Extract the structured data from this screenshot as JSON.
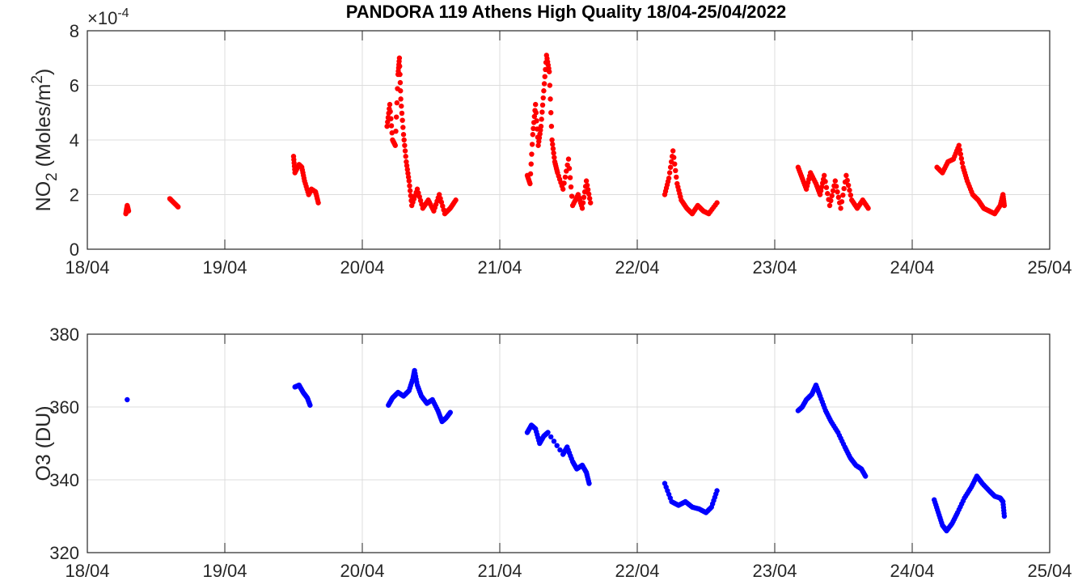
{
  "chart_data": [
    {
      "type": "scatter",
      "title": "PANDORA 119 Athens High Quality 18/04-25/04/2022",
      "ylabel": "NO2 (Moles/m2)",
      "ylabel_parts": {
        "main": "NO",
        "sub": "2",
        "unit": " (Moles/m",
        "sup": "2",
        "close": ")"
      },
      "exponent_label": {
        "times": "×10",
        "exp": "-4"
      },
      "x_unit": "days since 18/04/2022",
      "xlim": [
        0,
        7
      ],
      "ylim": [
        0,
        8
      ],
      "y_scale": "1e-4",
      "xticks": [
        "18/04",
        "19/04",
        "20/04",
        "21/04",
        "22/04",
        "23/04",
        "24/04",
        "25/04"
      ],
      "yticks": [
        "0",
        "2",
        "4",
        "6",
        "8"
      ],
      "grid": true,
      "color": "#ff0000",
      "segments": [
        [
          [
            0.28,
            1.3
          ],
          [
            0.29,
            1.6
          ],
          [
            0.3,
            1.4
          ]
        ],
        [
          [
            0.6,
            1.85
          ],
          [
            0.63,
            1.7
          ],
          [
            0.66,
            1.55
          ]
        ],
        [
          [
            1.5,
            3.4
          ],
          [
            1.51,
            2.8
          ],
          [
            1.54,
            3.1
          ],
          [
            1.56,
            3.0
          ],
          [
            1.58,
            2.5
          ],
          [
            1.61,
            2.0
          ],
          [
            1.63,
            2.2
          ],
          [
            1.66,
            2.1
          ],
          [
            1.68,
            1.7
          ]
        ],
        [
          [
            2.18,
            4.5
          ],
          [
            2.2,
            5.3
          ],
          [
            2.22,
            4.0
          ],
          [
            2.24,
            3.8
          ],
          [
            2.26,
            6.4
          ],
          [
            2.27,
            7.0
          ],
          [
            2.28,
            5.5
          ],
          [
            2.3,
            4.2
          ],
          [
            2.32,
            3.2
          ],
          [
            2.34,
            2.5
          ],
          [
            2.36,
            1.6
          ],
          [
            2.4,
            2.2
          ],
          [
            2.44,
            1.5
          ],
          [
            2.48,
            1.8
          ],
          [
            2.52,
            1.4
          ],
          [
            2.56,
            2.0
          ],
          [
            2.6,
            1.3
          ],
          [
            2.64,
            1.5
          ],
          [
            2.68,
            1.8
          ]
        ],
        [
          [
            3.2,
            2.7
          ],
          [
            3.22,
            2.4
          ],
          [
            3.24,
            4.2
          ],
          [
            3.26,
            5.3
          ],
          [
            3.28,
            3.8
          ],
          [
            3.3,
            4.5
          ],
          [
            3.32,
            5.8
          ],
          [
            3.34,
            7.1
          ],
          [
            3.36,
            6.5
          ],
          [
            3.38,
            4.0
          ],
          [
            3.4,
            3.2
          ],
          [
            3.42,
            2.8
          ],
          [
            3.46,
            2.2
          ],
          [
            3.5,
            3.3
          ],
          [
            3.53,
            1.6
          ],
          [
            3.57,
            2.0
          ],
          [
            3.6,
            1.5
          ],
          [
            3.63,
            2.5
          ],
          [
            3.66,
            1.7
          ]
        ],
        [
          [
            4.2,
            2.0
          ],
          [
            4.23,
            2.6
          ],
          [
            4.26,
            3.6
          ],
          [
            4.29,
            2.4
          ],
          [
            4.32,
            1.8
          ],
          [
            4.36,
            1.5
          ],
          [
            4.4,
            1.3
          ],
          [
            4.44,
            1.6
          ],
          [
            4.48,
            1.4
          ],
          [
            4.52,
            1.3
          ],
          [
            4.58,
            1.7
          ]
        ],
        [
          [
            5.17,
            3.0
          ],
          [
            5.2,
            2.6
          ],
          [
            5.23,
            2.2
          ],
          [
            5.26,
            2.8
          ],
          [
            5.3,
            2.4
          ],
          [
            5.33,
            2.0
          ],
          [
            5.36,
            2.7
          ],
          [
            5.4,
            1.6
          ],
          [
            5.44,
            2.5
          ],
          [
            5.48,
            1.5
          ],
          [
            5.52,
            2.7
          ],
          [
            5.56,
            1.8
          ],
          [
            5.6,
            1.5
          ],
          [
            5.64,
            1.8
          ],
          [
            5.68,
            1.5
          ]
        ],
        [
          [
            6.18,
            3.0
          ],
          [
            6.22,
            2.8
          ],
          [
            6.26,
            3.2
          ],
          [
            6.3,
            3.3
          ],
          [
            6.34,
            3.8
          ],
          [
            6.37,
            3.0
          ],
          [
            6.4,
            2.5
          ],
          [
            6.44,
            2.0
          ],
          [
            6.48,
            1.8
          ],
          [
            6.52,
            1.5
          ],
          [
            6.56,
            1.4
          ],
          [
            6.6,
            1.3
          ],
          [
            6.64,
            1.6
          ],
          [
            6.66,
            2.0
          ],
          [
            6.67,
            1.6
          ]
        ]
      ]
    },
    {
      "type": "scatter",
      "ylabel": "O3 (DU)",
      "ylabel_parts": {
        "main": "O",
        "sub": "3",
        "unit": " (DU)"
      },
      "x_unit": "days since 18/04/2022",
      "xlim": [
        0,
        7
      ],
      "ylim": [
        320,
        380
      ],
      "xticks": [
        "18/04",
        "19/04",
        "20/04",
        "21/04",
        "22/04",
        "23/04",
        "24/04",
        "25/04"
      ],
      "yticks": [
        "320",
        "340",
        "360",
        "380"
      ],
      "grid": true,
      "color": "#0000ff",
      "segments": [
        [
          [
            0.29,
            362
          ]
        ],
        [
          [
            1.51,
            365.5
          ],
          [
            1.54,
            366
          ],
          [
            1.57,
            364
          ],
          [
            1.6,
            362.5
          ],
          [
            1.62,
            360.5
          ]
        ],
        [
          [
            2.19,
            360.5
          ],
          [
            2.22,
            362.5
          ],
          [
            2.26,
            364
          ],
          [
            2.3,
            363
          ],
          [
            2.34,
            364.5
          ],
          [
            2.37,
            368
          ],
          [
            2.38,
            370
          ],
          [
            2.4,
            366
          ],
          [
            2.43,
            363
          ],
          [
            2.47,
            361
          ],
          [
            2.51,
            362
          ],
          [
            2.55,
            359
          ],
          [
            2.58,
            356
          ],
          [
            2.61,
            357
          ],
          [
            2.64,
            358.5
          ]
        ],
        [
          [
            3.2,
            353
          ],
          [
            3.23,
            355
          ],
          [
            3.26,
            354
          ],
          [
            3.29,
            350
          ],
          [
            3.32,
            352
          ],
          [
            3.35,
            353
          ],
          [
            3.46,
            347
          ],
          [
            3.49,
            349
          ],
          [
            3.53,
            345
          ],
          [
            3.56,
            343
          ],
          [
            3.6,
            344
          ],
          [
            3.63,
            342
          ],
          [
            3.65,
            339
          ]
        ],
        [
          [
            4.2,
            339
          ],
          [
            4.25,
            334
          ],
          [
            4.3,
            333
          ],
          [
            4.35,
            334
          ],
          [
            4.4,
            332.5
          ],
          [
            4.45,
            332
          ],
          [
            4.5,
            331
          ],
          [
            4.54,
            332.5
          ],
          [
            4.58,
            337
          ]
        ],
        [
          [
            5.17,
            359
          ],
          [
            5.2,
            360
          ],
          [
            5.23,
            362
          ],
          [
            5.27,
            363.5
          ],
          [
            5.3,
            366
          ],
          [
            5.33,
            363
          ],
          [
            5.37,
            359
          ],
          [
            5.41,
            356
          ],
          [
            5.46,
            353
          ],
          [
            5.51,
            349
          ],
          [
            5.55,
            346
          ],
          [
            5.59,
            344
          ],
          [
            5.63,
            343
          ],
          [
            5.66,
            341
          ]
        ],
        [
          [
            6.16,
            334.5
          ],
          [
            6.19,
            331
          ],
          [
            6.22,
            327.5
          ],
          [
            6.25,
            326
          ],
          [
            6.29,
            328
          ],
          [
            6.33,
            331
          ],
          [
            6.38,
            335
          ],
          [
            6.43,
            338
          ],
          [
            6.47,
            341
          ],
          [
            6.51,
            339
          ],
          [
            6.56,
            337
          ],
          [
            6.6,
            335.5
          ],
          [
            6.64,
            335
          ],
          [
            6.66,
            334
          ],
          [
            6.67,
            330
          ]
        ]
      ]
    }
  ]
}
